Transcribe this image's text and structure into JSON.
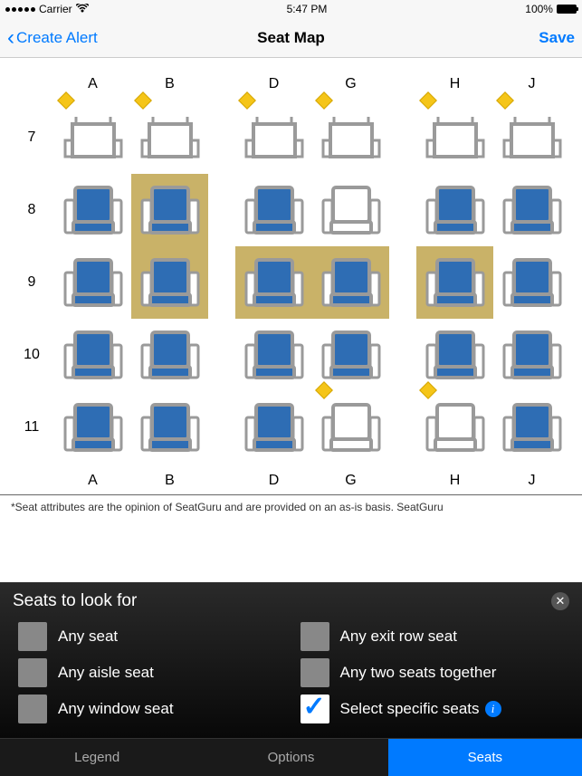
{
  "status": {
    "carrier": "Carrier",
    "time": "5:47 PM",
    "battery": "100%"
  },
  "nav": {
    "back": "Create Alert",
    "title": "Seat Map",
    "save": "Save"
  },
  "columns": [
    "A",
    "B",
    "D",
    "G",
    "H",
    "J"
  ],
  "rows": [
    {
      "num": "7",
      "seats": [
        {
          "type": "first",
          "diamond": true
        },
        {
          "type": "first",
          "diamond": true
        },
        {
          "type": "first",
          "diamond": true
        },
        {
          "type": "first",
          "diamond": true
        },
        {
          "type": "first",
          "diamond": true
        },
        {
          "type": "first",
          "diamond": true
        }
      ]
    },
    {
      "num": "8",
      "seats": [
        {
          "type": "blue"
        },
        {
          "type": "blue",
          "hl": true
        },
        {
          "type": "blue"
        },
        {
          "type": "white"
        },
        {
          "type": "blue"
        },
        {
          "type": "blue"
        }
      ]
    },
    {
      "num": "9",
      "seats": [
        {
          "type": "blue"
        },
        {
          "type": "blue",
          "hl": true
        },
        {
          "type": "blue",
          "hl": true
        },
        {
          "type": "blue",
          "hl": true
        },
        {
          "type": "blue",
          "hl": true
        },
        {
          "type": "blue"
        }
      ]
    },
    {
      "num": "10",
      "seats": [
        {
          "type": "blue"
        },
        {
          "type": "blue"
        },
        {
          "type": "blue"
        },
        {
          "type": "blue"
        },
        {
          "type": "blue"
        },
        {
          "type": "blue"
        }
      ]
    },
    {
      "num": "11",
      "seats": [
        {
          "type": "blue"
        },
        {
          "type": "blue"
        },
        {
          "type": "blue"
        },
        {
          "type": "white",
          "diamond": true
        },
        {
          "type": "white",
          "diamond": true
        },
        {
          "type": "blue"
        }
      ]
    }
  ],
  "footnote": "*Seat attributes are the opinion of SeatGuru and are provided on an as-is basis.  SeatGuru",
  "panel": {
    "title": "Seats to look for",
    "options": [
      {
        "label": "Any seat",
        "checked": false
      },
      {
        "label": "Any exit row seat",
        "checked": false
      },
      {
        "label": "Any aisle seat",
        "checked": false
      },
      {
        "label": "Any two seats together",
        "checked": false
      },
      {
        "label": "Any window seat",
        "checked": false
      },
      {
        "label": "Select specific seats",
        "checked": true,
        "info": true
      }
    ]
  },
  "tabs": [
    {
      "label": "Legend",
      "active": false
    },
    {
      "label": "Options",
      "active": false
    },
    {
      "label": "Seats",
      "active": true
    }
  ],
  "colors": {
    "blue_seat": "#2e6db4",
    "seat_border": "#9a9a9a",
    "highlight": "#c9b268",
    "diamond": "#f5c518",
    "ios_blue": "#007aff"
  }
}
